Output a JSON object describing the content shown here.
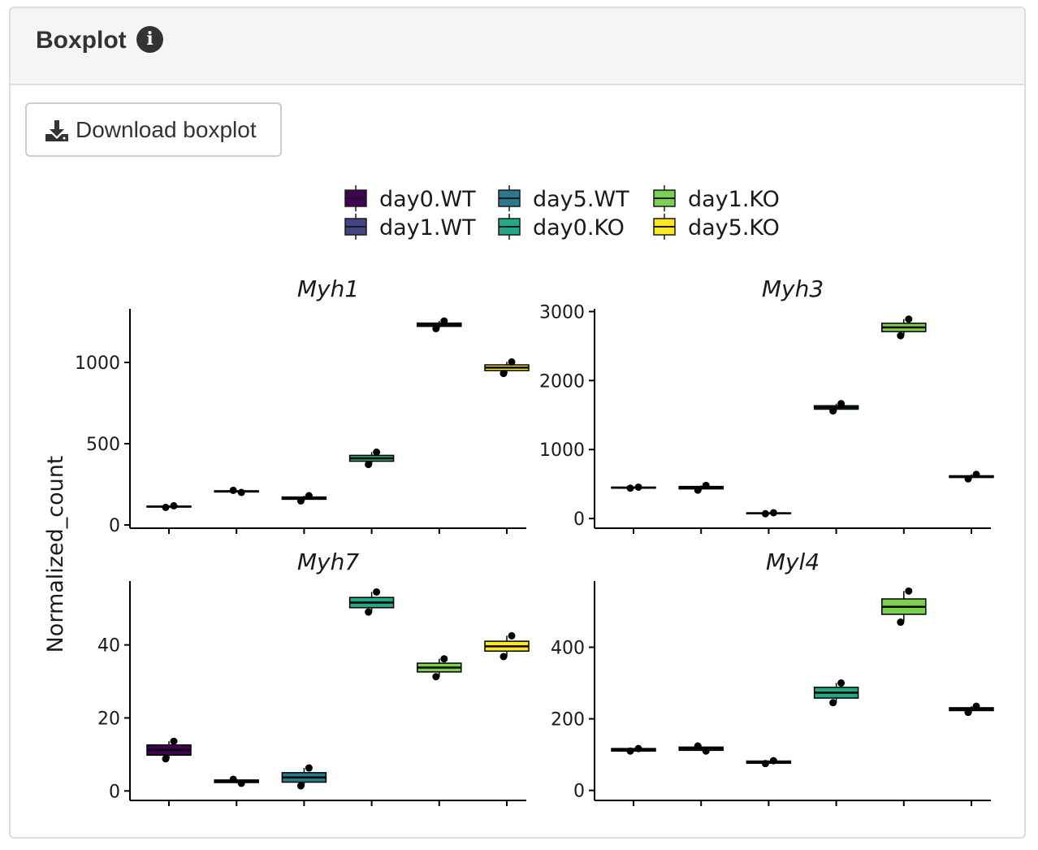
{
  "panel": {
    "title": "Boxplot",
    "info_icon": "info-icon",
    "download_label": "Download boxplot",
    "download_icon": "download-icon"
  },
  "chart_data": {
    "type": "boxplot",
    "ylabel": "Normalized_count",
    "legend_position": "top",
    "groups": [
      "day0.WT",
      "day1.WT",
      "day5.WT",
      "day0.KO",
      "day1.KO",
      "day5.KO"
    ],
    "legend_order": [
      "day0.WT",
      "day1.WT",
      "day5.WT",
      "day0.KO",
      "day1.KO",
      "day5.KO"
    ],
    "colors": {
      "day0.WT": "#440154",
      "day1.WT": "#414487",
      "day5.WT": "#2A788E",
      "day0.KO": "#22A884",
      "day1.KO": "#7AD151",
      "day5.KO": "#FDE725"
    },
    "facets": [
      {
        "title": "Myh1",
        "ylim": [
          -20,
          1330
        ],
        "yticks": [
          0,
          500,
          1000
        ],
        "boxes": [
          {
            "group": "day0.WT",
            "q1": 110,
            "median": 113,
            "q3": 116,
            "wlo": 108,
            "whi": 118
          },
          {
            "group": "day1.WT",
            "q1": 203,
            "median": 207,
            "q3": 210,
            "wlo": 200,
            "whi": 213
          },
          {
            "group": "day5.WT",
            "q1": 158,
            "median": 165,
            "q3": 172,
            "wlo": 148,
            "whi": 180
          },
          {
            "group": "day0.KO",
            "q1": 392,
            "median": 410,
            "q3": 428,
            "wlo": 372,
            "whi": 448
          },
          {
            "group": "day1.KO",
            "q1": 1222,
            "median": 1232,
            "q3": 1242,
            "wlo": 1208,
            "whi": 1255
          },
          {
            "group": "day5.KO",
            "q1": 950,
            "median": 968,
            "q3": 985,
            "wlo": 932,
            "whi": 1003
          }
        ],
        "points": [
          {
            "group": "day0.WT",
            "values": [
              108,
              118
            ]
          },
          {
            "group": "day1.WT",
            "values": [
              213,
              200
            ]
          },
          {
            "group": "day5.WT",
            "values": [
              148,
              180
            ]
          },
          {
            "group": "day0.KO",
            "values": [
              372,
              448
            ]
          },
          {
            "group": "day1.KO",
            "values": [
              1208,
              1255
            ]
          },
          {
            "group": "day5.KO",
            "values": [
              932,
              1003
            ]
          }
        ]
      },
      {
        "title": "Myh3",
        "ylim": [
          -140,
          3040
        ],
        "yticks": [
          0,
          1000,
          2000,
          3000
        ],
        "boxes": [
          {
            "group": "day0.WT",
            "q1": 440,
            "median": 448,
            "q3": 455,
            "wlo": 440,
            "whi": 455
          },
          {
            "group": "day1.WT",
            "q1": 430,
            "median": 448,
            "q3": 465,
            "wlo": 412,
            "whi": 480
          },
          {
            "group": "day5.WT",
            "q1": 72,
            "median": 77,
            "q3": 82,
            "wlo": 70,
            "whi": 84
          },
          {
            "group": "day0.KO",
            "q1": 1585,
            "median": 1610,
            "q3": 1635,
            "wlo": 1560,
            "whi": 1665
          },
          {
            "group": "day1.KO",
            "q1": 2710,
            "median": 2770,
            "q3": 2830,
            "wlo": 2650,
            "whi": 2890
          },
          {
            "group": "day5.KO",
            "q1": 595,
            "median": 608,
            "q3": 620,
            "wlo": 575,
            "whi": 640
          }
        ],
        "points": [
          {
            "group": "day0.WT",
            "values": [
              440,
              455
            ]
          },
          {
            "group": "day1.WT",
            "values": [
              412,
              480
            ]
          },
          {
            "group": "day5.WT",
            "values": [
              70,
              84
            ]
          },
          {
            "group": "day0.KO",
            "values": [
              1560,
              1665
            ]
          },
          {
            "group": "day1.KO",
            "values": [
              2650,
              2890
            ]
          },
          {
            "group": "day5.KO",
            "values": [
              575,
              640
            ]
          }
        ]
      },
      {
        "title": "Myh7",
        "ylim": [
          -2.6,
          57.5
        ],
        "yticks": [
          0,
          20,
          40
        ],
        "boxes": [
          {
            "group": "day0.WT",
            "q1": 9.8,
            "median": 11.2,
            "q3": 12.6,
            "wlo": 8.8,
            "whi": 13.6
          },
          {
            "group": "day1.WT",
            "q1": 2.3,
            "median": 2.7,
            "q3": 3.0,
            "wlo": 2.1,
            "whi": 3.2
          },
          {
            "group": "day5.WT",
            "q1": 2.4,
            "median": 3.7,
            "q3": 5.0,
            "wlo": 1.4,
            "whi": 6.3
          },
          {
            "group": "day0.KO",
            "q1": 50.2,
            "median": 51.6,
            "q3": 53.0,
            "wlo": 49.0,
            "whi": 54.5
          },
          {
            "group": "day1.KO",
            "q1": 32.6,
            "median": 33.8,
            "q3": 35.0,
            "wlo": 31.3,
            "whi": 36.2
          },
          {
            "group": "day5.KO",
            "q1": 38.3,
            "median": 39.6,
            "q3": 41.0,
            "wlo": 36.8,
            "whi": 42.5
          }
        ],
        "points": [
          {
            "group": "day0.WT",
            "values": [
              8.8,
              13.6
            ]
          },
          {
            "group": "day1.WT",
            "values": [
              3.2,
              2.1
            ]
          },
          {
            "group": "day5.WT",
            "values": [
              1.4,
              6.3
            ]
          },
          {
            "group": "day0.KO",
            "values": [
              49.0,
              54.5
            ]
          },
          {
            "group": "day1.KO",
            "values": [
              31.3,
              36.2
            ]
          },
          {
            "group": "day5.KO",
            "values": [
              36.8,
              42.5
            ]
          }
        ]
      },
      {
        "title": "Myl4",
        "ylim": [
          -28,
          585
        ],
        "yticks": [
          0,
          200,
          400
        ],
        "boxes": [
          {
            "group": "day0.WT",
            "q1": 110,
            "median": 114,
            "q3": 117,
            "wlo": 110,
            "whi": 117
          },
          {
            "group": "day1.WT",
            "q1": 112,
            "median": 117,
            "q3": 121,
            "wlo": 110,
            "whi": 124
          },
          {
            "group": "day5.WT",
            "q1": 76,
            "median": 79,
            "q3": 82,
            "wlo": 75,
            "whi": 83
          },
          {
            "group": "day0.KO",
            "q1": 258,
            "median": 273,
            "q3": 288,
            "wlo": 245,
            "whi": 300
          },
          {
            "group": "day1.KO",
            "q1": 492,
            "median": 513,
            "q3": 535,
            "wlo": 470,
            "whi": 557
          },
          {
            "group": "day5.KO",
            "q1": 223,
            "median": 227,
            "q3": 231,
            "wlo": 218,
            "whi": 235
          }
        ],
        "points": [
          {
            "group": "day0.WT",
            "values": [
              110,
              117
            ]
          },
          {
            "group": "day1.WT",
            "values": [
              124,
              110
            ]
          },
          {
            "group": "day5.WT",
            "values": [
              75,
              83
            ]
          },
          {
            "group": "day0.KO",
            "values": [
              245,
              300
            ]
          },
          {
            "group": "day1.KO",
            "values": [
              470,
              557
            ]
          },
          {
            "group": "day5.KO",
            "values": [
              218,
              235
            ]
          }
        ]
      }
    ]
  }
}
